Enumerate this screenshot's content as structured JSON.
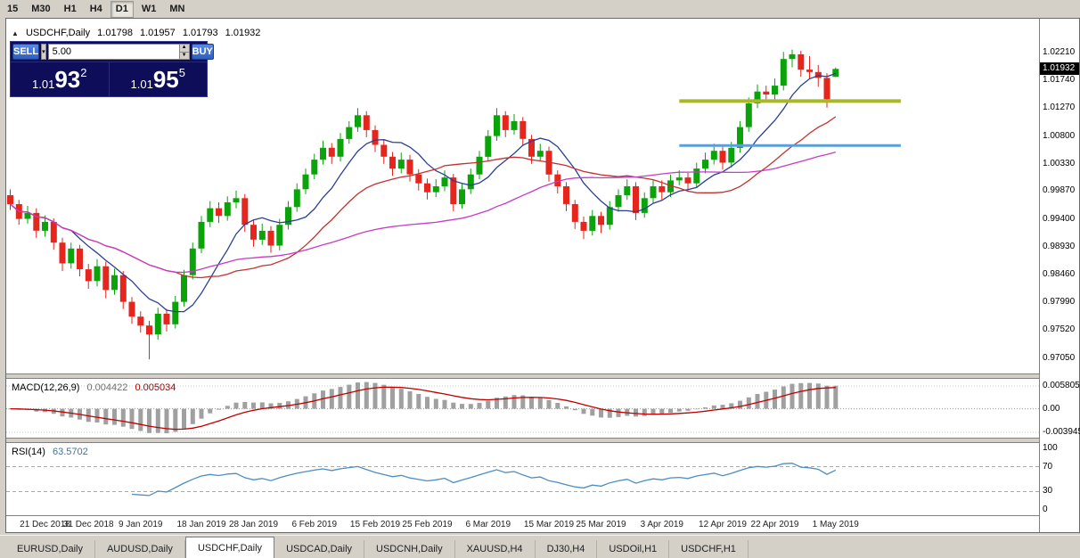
{
  "toolbar": {
    "buttons": [
      {
        "label": "15",
        "active": false
      },
      {
        "label": "M30",
        "active": false
      },
      {
        "label": "H1",
        "active": false
      },
      {
        "label": "H4",
        "active": false
      },
      {
        "label": "D1",
        "active": true
      },
      {
        "label": "W1",
        "active": false
      },
      {
        "label": "MN",
        "active": false
      }
    ]
  },
  "chart_header": {
    "toggle_icon": "▲",
    "symbol": "USDCHF,Daily",
    "open": "1.01798",
    "high": "1.01957",
    "low": "1.01793",
    "close": "1.01932"
  },
  "trade_panel": {
    "sell_label": "SELL",
    "buy_label": "BUY",
    "volume": "5.00",
    "dropdown_icon": "▾",
    "step_up_icon": "▲",
    "step_down_icon": "▼",
    "bid_small": "1.01",
    "bid_big": "93",
    "bid_sup": "2",
    "ask_small": "1.01",
    "ask_big": "95",
    "ask_sup": "5"
  },
  "price_axis": {
    "labels": [
      "1.02210",
      "1.01740",
      "1.01270",
      "1.00800",
      "1.00330",
      "0.99870",
      "0.99400",
      "0.98930",
      "0.98460",
      "0.97990",
      "0.97520",
      "0.97050"
    ],
    "current": "1.01932",
    "scale_max": 1.0278,
    "scale_min": 0.9679
  },
  "macd": {
    "title": "MACD(12,26,9)",
    "value_main": "0.004422",
    "value_signal": "0.005034",
    "axis_labels": [
      "0.005805",
      "0.00",
      "-0.003945"
    ],
    "fast": 12,
    "slow": 26,
    "signal": 9,
    "histogram_color": "#a0a0a0",
    "signal_color": "#c00000"
  },
  "rsi": {
    "title": "RSI(14)",
    "value": "63.5702",
    "axis_labels": [
      100,
      70,
      30,
      0
    ],
    "levels": [
      70,
      30
    ],
    "period": 14,
    "line_color": "#4a8fc4",
    "scale_max": 108,
    "scale_min": -8
  },
  "date_axis": {
    "labels": [
      {
        "text": "21 Dec 2018",
        "index": 4
      },
      {
        "text": "31 Dec 2018",
        "index": 9
      },
      {
        "text": "9 Jan 2019",
        "index": 15
      },
      {
        "text": "18 Jan 2019",
        "index": 22
      },
      {
        "text": "28 Jan 2019",
        "index": 28
      },
      {
        "text": "6 Feb 2019",
        "index": 35
      },
      {
        "text": "15 Feb 2019",
        "index": 42
      },
      {
        "text": "25 Feb 2019",
        "index": 48
      },
      {
        "text": "6 Mar 2019",
        "index": 55
      },
      {
        "text": "15 Mar 2019",
        "index": 62
      },
      {
        "text": "25 Mar 2019",
        "index": 68
      },
      {
        "text": "3 Apr 2019",
        "index": 75
      },
      {
        "text": "12 Apr 2019",
        "index": 82
      },
      {
        "text": "22 Apr 2019",
        "index": 88
      },
      {
        "text": "1 May 2019",
        "index": 95
      }
    ]
  },
  "tabs": [
    {
      "label": "EURUSD,Daily",
      "active": false
    },
    {
      "label": "AUDUSD,Daily",
      "active": false
    },
    {
      "label": "USDCHF,Daily",
      "active": true
    },
    {
      "label": "USDCAD,Daily",
      "active": false
    },
    {
      "label": "USDCNH,Daily",
      "active": false
    },
    {
      "label": "XAUUSD,H4",
      "active": false
    },
    {
      "label": "DJ30,H4",
      "active": false
    },
    {
      "label": "USDOil,H1",
      "active": false
    },
    {
      "label": "USDCHF,H1",
      "active": false
    }
  ],
  "chart_data": {
    "type": "candlestick",
    "symbol": "USDCHF",
    "timeframe": "Daily",
    "up_color": "#0aa30a",
    "down_color": "#e6251d",
    "ma": [
      {
        "period": 8,
        "color": "#2b3f96"
      },
      {
        "period": 20,
        "color": "#c43131"
      },
      {
        "period": 45,
        "color": "#c73bc7"
      }
    ],
    "trendlines": [
      {
        "price": 1.0139,
        "color": "#a9b829",
        "width": 4,
        "x1_index": 77,
        "x2_index": 102.5
      },
      {
        "price": 1.0064,
        "color": "#5aa0d8",
        "width": 3,
        "x1_index": 77,
        "x2_index": 102.5
      }
    ],
    "candles": [
      [
        0.998,
        0.999,
        0.9955,
        0.9965
      ],
      [
        0.9965,
        0.9972,
        0.993,
        0.994
      ],
      [
        0.994,
        0.9962,
        0.9932,
        0.995
      ],
      [
        0.995,
        0.9958,
        0.9908,
        0.992
      ],
      [
        0.992,
        0.9946,
        0.991,
        0.9935
      ],
      [
        0.9935,
        0.9941,
        0.9888,
        0.99
      ],
      [
        0.99,
        0.9908,
        0.9852,
        0.9865
      ],
      [
        0.9865,
        0.99,
        0.9856,
        0.989
      ],
      [
        0.989,
        0.9896,
        0.9843,
        0.9855
      ],
      [
        0.9855,
        0.9864,
        0.9822,
        0.9835
      ],
      [
        0.9835,
        0.9872,
        0.9826,
        0.986
      ],
      [
        0.986,
        0.9868,
        0.9806,
        0.982
      ],
      [
        0.982,
        0.9856,
        0.9812,
        0.9845
      ],
      [
        0.9845,
        0.9852,
        0.9788,
        0.98
      ],
      [
        0.98,
        0.9808,
        0.9763,
        0.9775
      ],
      [
        0.9775,
        0.9784,
        0.9748,
        0.976
      ],
      [
        0.976,
        0.9768,
        0.9703,
        0.9745
      ],
      [
        0.9745,
        0.979,
        0.9736,
        0.978
      ],
      [
        0.978,
        0.9788,
        0.975,
        0.9762
      ],
      [
        0.9762,
        0.981,
        0.9755,
        0.98
      ],
      [
        0.98,
        0.9854,
        0.9792,
        0.9845
      ],
      [
        0.9845,
        0.99,
        0.9838,
        0.989
      ],
      [
        0.989,
        0.9945,
        0.9882,
        0.9935
      ],
      [
        0.9935,
        0.997,
        0.9926,
        0.9958
      ],
      [
        0.9958,
        0.9968,
        0.9933,
        0.9945
      ],
      [
        0.9945,
        0.9978,
        0.9937,
        0.9968
      ],
      [
        0.9968,
        0.9988,
        0.9958,
        0.9975
      ],
      [
        0.9975,
        0.9982,
        0.9918,
        0.993
      ],
      [
        0.993,
        0.9938,
        0.9893,
        0.9905
      ],
      [
        0.9905,
        0.9932,
        0.9896,
        0.992
      ],
      [
        0.992,
        0.9928,
        0.9883,
        0.9895
      ],
      [
        0.9895,
        0.994,
        0.9887,
        0.993
      ],
      [
        0.993,
        0.997,
        0.9922,
        0.996
      ],
      [
        0.996,
        1.0,
        0.9952,
        0.999
      ],
      [
        0.999,
        1.0025,
        0.9982,
        1.0015
      ],
      [
        1.0015,
        1.005,
        1.0007,
        1.004
      ],
      [
        1.004,
        1.0072,
        1.0032,
        1.006
      ],
      [
        1.006,
        1.0068,
        1.0033,
        1.0045
      ],
      [
        1.0045,
        1.0085,
        1.0037,
        1.0075
      ],
      [
        1.0075,
        1.0105,
        1.0067,
        1.0095
      ],
      [
        1.0095,
        1.0127,
        1.0087,
        1.0115
      ],
      [
        1.0115,
        1.0122,
        1.0078,
        1.009
      ],
      [
        1.009,
        1.0098,
        1.0053,
        1.0065
      ],
      [
        1.0065,
        1.0073,
        1.0033,
        1.0045
      ],
      [
        1.0045,
        1.0053,
        1.0013,
        1.0025
      ],
      [
        1.0025,
        1.0052,
        1.0017,
        1.004
      ],
      [
        1.004,
        1.0048,
        1.0003,
        1.0015
      ],
      [
        1.0015,
        1.0024,
        0.9988,
        1.0
      ],
      [
        1.0,
        1.0008,
        0.9973,
        0.9985
      ],
      [
        0.9985,
        1.0007,
        0.9977,
        0.9995
      ],
      [
        0.9995,
        1.0022,
        0.9987,
        1.001
      ],
      [
        1.001,
        1.0016,
        0.9953,
        0.9965
      ],
      [
        0.9965,
        1.0,
        0.9957,
        0.999
      ],
      [
        0.999,
        1.0025,
        0.9982,
        1.0015
      ],
      [
        1.0015,
        1.0055,
        1.0007,
        1.0045
      ],
      [
        1.0045,
        1.009,
        1.0037,
        1.008
      ],
      [
        1.008,
        1.0127,
        1.0072,
        1.0115
      ],
      [
        1.0115,
        1.0122,
        1.0078,
        1.009
      ],
      [
        1.009,
        1.0117,
        1.0082,
        1.0105
      ],
      [
        1.0105,
        1.0112,
        1.0063,
        1.0075
      ],
      [
        1.0075,
        1.0082,
        1.0033,
        1.0045
      ],
      [
        1.0045,
        1.0067,
        1.0037,
        1.0055
      ],
      [
        1.0055,
        1.0062,
        1.0003,
        1.0015
      ],
      [
        1.0015,
        1.0022,
        0.9983,
        0.9995
      ],
      [
        0.9995,
        1.0002,
        0.9953,
        0.9965
      ],
      [
        0.9965,
        0.9972,
        0.9923,
        0.9935
      ],
      [
        0.9935,
        0.9944,
        0.9906,
        0.992
      ],
      [
        0.992,
        0.9955,
        0.9912,
        0.9945
      ],
      [
        0.9945,
        0.9952,
        0.9916,
        0.993
      ],
      [
        0.993,
        0.997,
        0.9922,
        0.996
      ],
      [
        0.996,
        0.999,
        0.9952,
        0.998
      ],
      [
        0.998,
        1.0007,
        0.9972,
        0.9995
      ],
      [
        0.9995,
        1.0002,
        0.9938,
        0.995
      ],
      [
        0.995,
        0.9985,
        0.9942,
        0.9975
      ],
      [
        0.9975,
        1.0005,
        0.9967,
        0.9995
      ],
      [
        0.9995,
        1.0005,
        0.9973,
        0.9985
      ],
      [
        0.9985,
        1.0015,
        0.9977,
        1.0005
      ],
      [
        1.0005,
        1.0022,
        0.9997,
        1.001
      ],
      [
        1.001,
        1.0018,
        0.9988,
        1.0
      ],
      [
        1.0,
        1.0035,
        0.9992,
        1.0025
      ],
      [
        1.0025,
        1.0052,
        1.0017,
        1.004
      ],
      [
        1.004,
        1.0067,
        1.0032,
        1.0055
      ],
      [
        1.0055,
        1.0062,
        1.0023,
        1.0035
      ],
      [
        1.0035,
        1.007,
        1.0027,
        1.006
      ],
      [
        1.006,
        1.0105,
        1.0052,
        1.0095
      ],
      [
        1.0095,
        1.0145,
        1.0087,
        1.0135
      ],
      [
        1.0135,
        1.0167,
        1.0127,
        1.0155
      ],
      [
        1.0155,
        1.0165,
        1.0138,
        1.015
      ],
      [
        1.015,
        1.0177,
        1.0142,
        1.0165
      ],
      [
        1.0165,
        1.0222,
        1.0157,
        1.021
      ],
      [
        1.021,
        1.0226,
        1.0196,
        1.0218
      ],
      [
        1.0218,
        1.0224,
        1.018,
        1.0192
      ],
      [
        1.0192,
        1.0215,
        1.0176,
        1.0188
      ],
      [
        1.0188,
        1.02,
        1.0163,
        1.0178
      ],
      [
        1.0178,
        1.0186,
        1.0128,
        1.0142
      ],
      [
        1.01798,
        1.01957,
        1.01793,
        1.01932
      ]
    ]
  }
}
